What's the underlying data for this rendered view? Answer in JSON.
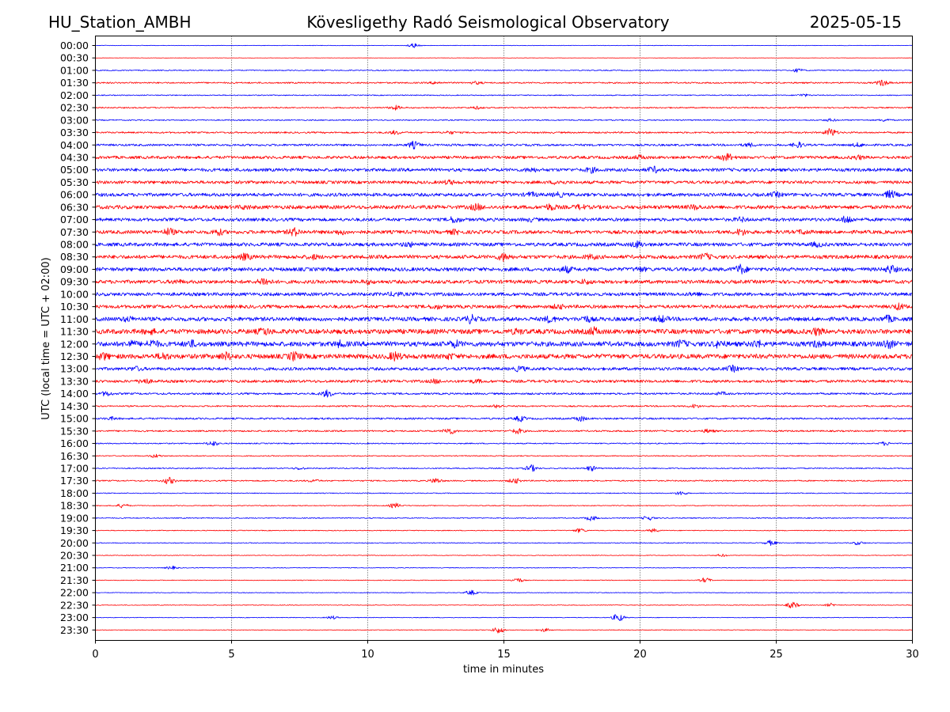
{
  "header": {
    "station": "HU_Station_AMBH",
    "observatory": "Kövesligethy Radó Seismological Observatory",
    "date": "2025-05-15"
  },
  "chart_data": {
    "type": "line",
    "title": "Kövesligethy Radó Seismological Observatory",
    "xlabel": "time in minutes",
    "ylabel": "UTC (local time = UTC + 02:00)",
    "xlim": [
      0,
      30
    ],
    "x_ticks": [
      0,
      5,
      10,
      15,
      20,
      25,
      30
    ],
    "x_tick_labels": [
      "0",
      "5",
      "10",
      "15",
      "20",
      "25",
      "30"
    ],
    "vertical_gridlines_at": [
      5,
      10,
      15,
      20,
      25
    ],
    "row_labels": [
      "00:00",
      "00:30",
      "01:00",
      "01:30",
      "02:00",
      "02:30",
      "03:00",
      "03:30",
      "04:00",
      "04:30",
      "05:00",
      "05:30",
      "06:00",
      "06:30",
      "07:00",
      "07:30",
      "08:00",
      "08:30",
      "09:00",
      "09:30",
      "10:00",
      "10:30",
      "11:00",
      "11:30",
      "12:00",
      "12:30",
      "13:00",
      "13:30",
      "14:00",
      "14:30",
      "15:00",
      "15:30",
      "16:00",
      "16:30",
      "17:00",
      "17:30",
      "18:00",
      "18:30",
      "19:00",
      "19:30",
      "20:00",
      "20:30",
      "21:00",
      "21:30",
      "22:00",
      "22:30",
      "23:00",
      "23:30"
    ],
    "trace_colors": [
      "#0000ff",
      "#ff0000"
    ],
    "trace_amplitude": [
      0.3,
      0.2,
      0.6,
      0.9,
      0.6,
      0.8,
      0.7,
      1.0,
      1.3,
      1.8,
      2.0,
      1.9,
      2.1,
      2.3,
      2.0,
      2.2,
      2.2,
      2.3,
      2.3,
      2.2,
      2.1,
      2.1,
      2.5,
      3.0,
      3.0,
      2.9,
      1.9,
      1.7,
      1.2,
      0.9,
      1.1,
      1.0,
      0.7,
      0.6,
      0.7,
      0.8,
      0.5,
      0.5,
      0.6,
      0.5,
      0.5,
      0.4,
      0.4,
      0.4,
      0.4,
      0.4,
      0.4,
      0.4
    ],
    "events": [
      [
        [
          11.7,
          2.5
        ]
      ],
      [],
      [
        [
          25.8,
          2.0
        ]
      ],
      [
        [
          28.9,
          3.5
        ],
        [
          12.5,
          1.5
        ],
        [
          14,
          1.5
        ]
      ],
      [
        [
          26,
          1.5
        ]
      ],
      [
        [
          11,
          2.5
        ],
        [
          14,
          1.5
        ]
      ],
      [
        [
          27,
          1.5
        ],
        [
          29,
          1.5
        ]
      ],
      [
        [
          27,
          5
        ],
        [
          11,
          2
        ],
        [
          13,
          1.5
        ]
      ],
      [
        [
          11.7,
          4
        ],
        [
          25.8,
          3
        ],
        [
          28,
          2
        ],
        [
          24,
          2
        ]
      ],
      [
        [
          23.2,
          4
        ],
        [
          28,
          2
        ],
        [
          20,
          2
        ]
      ],
      [
        [
          20.5,
          3
        ],
        [
          18.2,
          2.5
        ],
        [
          16,
          2
        ]
      ],
      [
        [
          13,
          2
        ],
        [
          17,
          2
        ]
      ],
      [
        [
          29.2,
          4
        ],
        [
          25,
          2
        ],
        [
          17,
          2
        ],
        [
          16,
          2
        ]
      ],
      [
        [
          16.7,
          3
        ],
        [
          14,
          3
        ],
        [
          17.8,
          2
        ],
        [
          22,
          2
        ],
        [
          5.5,
          1.5
        ]
      ],
      [
        [
          27.6,
          4
        ],
        [
          13.2,
          3.5
        ],
        [
          23.7,
          2
        ],
        [
          16,
          1.5
        ]
      ],
      [
        [
          2.7,
          3.5
        ],
        [
          7.3,
          4
        ],
        [
          4.5,
          3
        ],
        [
          23.7,
          3
        ],
        [
          26,
          2
        ],
        [
          9,
          2
        ],
        [
          13.2,
          2
        ]
      ],
      [
        [
          19.9,
          3
        ],
        [
          26.5,
          2
        ],
        [
          11.5,
          2
        ]
      ],
      [
        [
          15,
          4
        ],
        [
          5.5,
          3
        ],
        [
          22.4,
          3
        ],
        [
          18.2,
          2
        ],
        [
          8,
          2
        ]
      ],
      [
        [
          23.7,
          5
        ],
        [
          29.2,
          4
        ],
        [
          17.3,
          3
        ],
        [
          20,
          2
        ]
      ],
      [
        [
          6.2,
          4.5
        ],
        [
          18,
          2
        ],
        [
          3,
          1.5
        ],
        [
          10,
          1.5
        ]
      ],
      [
        [
          11,
          2
        ],
        [
          22,
          1.5
        ]
      ],
      [
        [
          29.5,
          3
        ],
        [
          12.5,
          2
        ],
        [
          17,
          2
        ]
      ],
      [
        [
          13.8,
          4
        ],
        [
          16.7,
          3
        ],
        [
          18,
          3
        ],
        [
          20.8,
          3
        ],
        [
          29.1,
          3
        ],
        [
          1.2,
          2
        ]
      ],
      [
        [
          18.3,
          3.5
        ],
        [
          26.5,
          3
        ],
        [
          6.2,
          3
        ],
        [
          15.5,
          2
        ],
        [
          2,
          2
        ]
      ],
      [
        [
          2.1,
          3.5
        ],
        [
          3.5,
          3
        ],
        [
          13.2,
          3
        ],
        [
          21.5,
          3
        ],
        [
          22.9,
          3
        ],
        [
          24.3,
          3
        ],
        [
          26.5,
          2.5
        ],
        [
          29.1,
          4
        ],
        [
          1.3,
          2.5
        ],
        [
          9,
          2.5
        ]
      ],
      [
        [
          11,
          4
        ],
        [
          2.5,
          3
        ],
        [
          4.8,
          3.5
        ],
        [
          7.3,
          4
        ],
        [
          0.3,
          3
        ],
        [
          13,
          2
        ]
      ],
      [
        [
          23.4,
          3
        ],
        [
          15.6,
          2.5
        ],
        [
          1.5,
          2
        ]
      ],
      [
        [
          1.8,
          3
        ],
        [
          12.5,
          2
        ],
        [
          14,
          1.5
        ]
      ],
      [
        [
          8.5,
          4
        ],
        [
          0.4,
          2.5
        ],
        [
          23,
          1.5
        ]
      ],
      [
        [
          14.8,
          2
        ],
        [
          22,
          2
        ]
      ],
      [
        [
          15.6,
          3
        ],
        [
          17.8,
          3
        ],
        [
          0.6,
          1.5
        ]
      ],
      [
        [
          13,
          4
        ],
        [
          15.5,
          3
        ],
        [
          22.5,
          2
        ]
      ],
      [
        [
          4.3,
          3
        ],
        [
          29,
          2
        ]
      ],
      [
        [
          2.2,
          2
        ]
      ],
      [
        [
          16,
          4
        ],
        [
          18.2,
          3
        ],
        [
          7.5,
          1.5
        ]
      ],
      [
        [
          2.7,
          4
        ],
        [
          12.5,
          3
        ],
        [
          15.4,
          3
        ],
        [
          8,
          1.5
        ]
      ],
      [
        [
          21.5,
          2.5
        ]
      ],
      [
        [
          1,
          2.5
        ],
        [
          11,
          3
        ]
      ],
      [
        [
          18.2,
          3
        ],
        [
          20.3,
          2.5
        ]
      ],
      [
        [
          17.8,
          2.5
        ],
        [
          20.5,
          2
        ]
      ],
      [
        [
          24.8,
          3
        ],
        [
          28,
          2
        ]
      ],
      [
        [
          23,
          1.5
        ]
      ],
      [
        [
          2.8,
          2
        ]
      ],
      [
        [
          15.5,
          3
        ],
        [
          22.4,
          3
        ]
      ],
      [
        [
          13.8,
          3
        ]
      ],
      [
        [
          25.6,
          4
        ],
        [
          27,
          2
        ]
      ],
      [
        [
          19.2,
          5
        ],
        [
          8.7,
          2
        ]
      ],
      [
        [
          14.8,
          4
        ],
        [
          16.5,
          2
        ]
      ]
    ]
  }
}
